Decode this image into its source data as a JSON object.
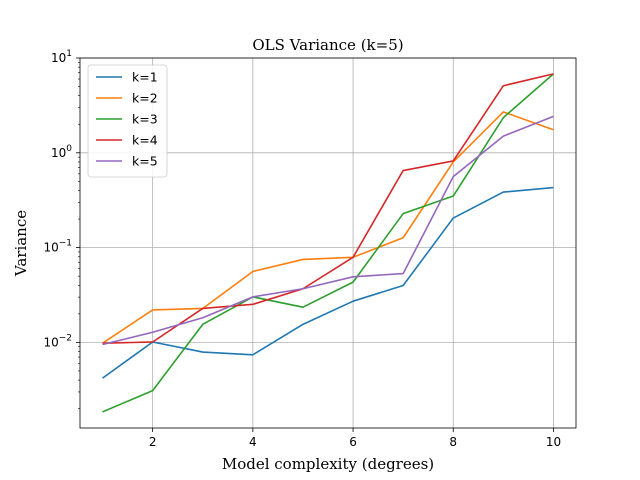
{
  "chart_data": {
    "type": "line",
    "title": "OLS Variance (k=5)",
    "xlabel": "Model complexity (degrees)",
    "ylabel": "Variance",
    "xlim": [
      0.55,
      10.45
    ],
    "ylim": [
      0.00125,
      10
    ],
    "yscale": "log",
    "grid": true,
    "legend_position": "top-left",
    "x_ticks": [
      2,
      4,
      6,
      8,
      10
    ],
    "x_tick_labels": [
      "2",
      "4",
      "6",
      "8",
      "10"
    ],
    "y_ticks": [
      0.01,
      0.1,
      1,
      10
    ],
    "y_tick_labels": [
      {
        "base": "10",
        "exp": "−2"
      },
      {
        "base": "10",
        "exp": "−1"
      },
      {
        "base": "10",
        "exp": "0"
      },
      {
        "base": "10",
        "exp": "1"
      }
    ],
    "x": [
      1,
      2,
      3,
      4,
      5,
      6,
      7,
      8,
      9,
      10
    ],
    "series": [
      {
        "name": "k=1",
        "color": "#1f77b4",
        "values": [
          0.0042,
          0.0101,
          0.0079,
          0.0074,
          0.0155,
          0.0272,
          0.0398,
          0.205,
          0.385,
          0.43
        ]
      },
      {
        "name": "k=2",
        "color": "#ff7f0e",
        "values": [
          0.0098,
          0.022,
          0.0228,
          0.056,
          0.075,
          0.079,
          0.127,
          0.8,
          2.7,
          1.75
        ]
      },
      {
        "name": "k=3",
        "color": "#2ca02c",
        "values": [
          0.00185,
          0.0031,
          0.0155,
          0.0302,
          0.0235,
          0.0432,
          0.228,
          0.35,
          2.35,
          6.8
        ]
      },
      {
        "name": "k=4",
        "color": "#d62728",
        "values": [
          0.0098,
          0.0101,
          0.0228,
          0.0252,
          0.0368,
          0.079,
          0.65,
          0.82,
          5.1,
          6.8
        ]
      },
      {
        "name": "k=5",
        "color": "#9467bd",
        "values": [
          0.0095,
          0.0128,
          0.0182,
          0.0302,
          0.0368,
          0.0492,
          0.0532,
          0.56,
          1.5,
          2.42
        ]
      }
    ]
  }
}
